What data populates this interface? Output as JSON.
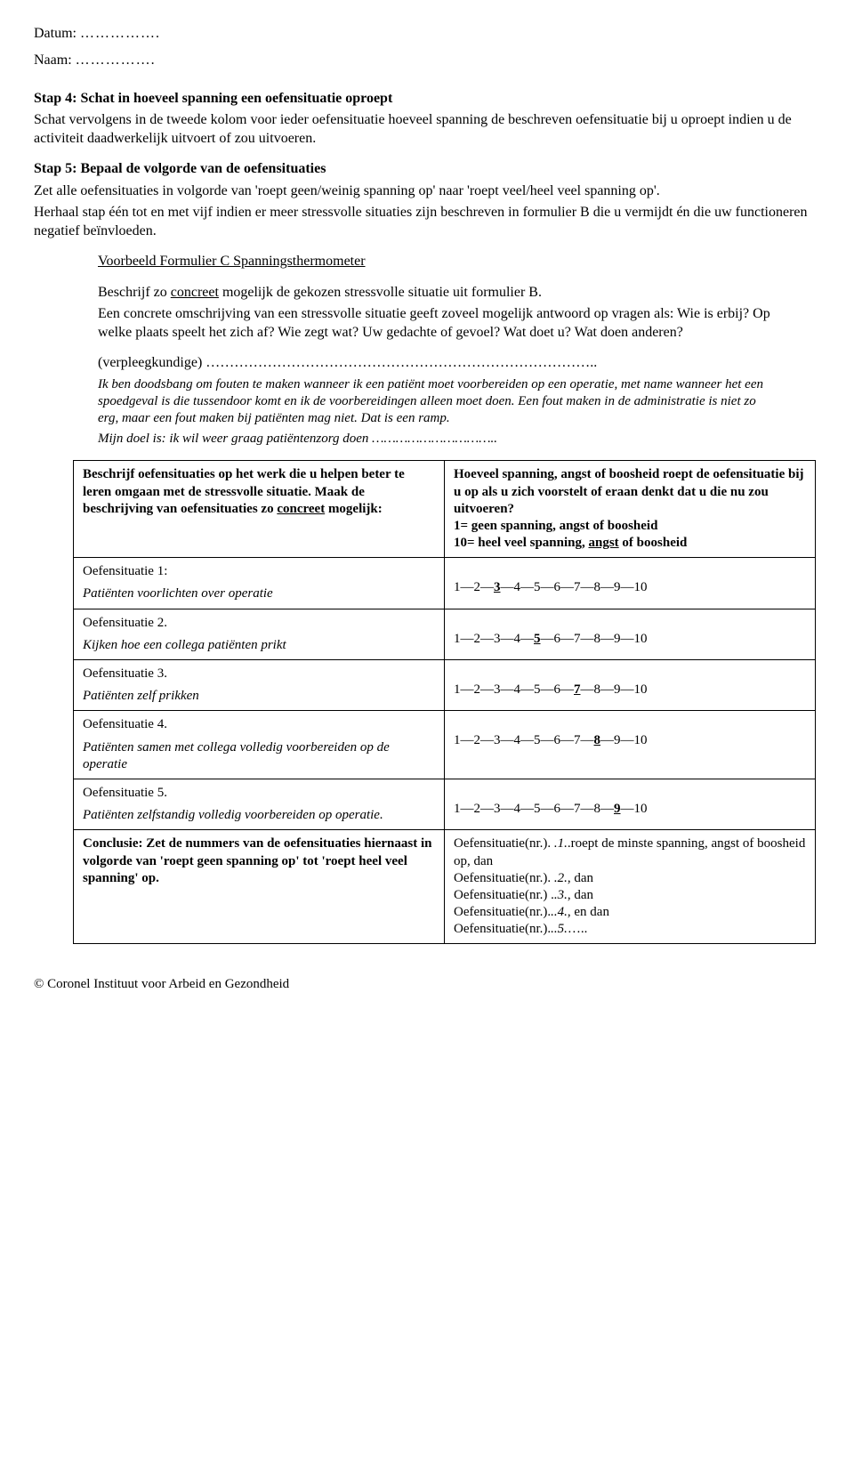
{
  "header": {
    "datum_label": "Datum:",
    "naam_label": "Naam:",
    "dots": "……………."
  },
  "step4": {
    "title": "Stap 4: Schat in hoeveel spanning een oefensituatie oproept",
    "body": "Schat vervolgens in de tweede kolom voor ieder oefensituatie hoeveel spanning de beschreven oefensituatie bij u oproept indien u de activiteit daadwerkelijk uitvoert of zou uitvoeren."
  },
  "step5": {
    "title": "Stap 5: Bepaal de volgorde van de oefensituaties",
    "body1": "Zet alle oefensituaties in volgorde van 'roept geen/weinig spanning op' naar 'roept veel/heel veel spanning op'.",
    "body2": "Herhaal stap één tot en met vijf indien er meer stressvolle situaties zijn beschreven in formulier B die u vermijdt én die uw functioneren negatief beïnvloeden."
  },
  "example": {
    "heading": "Voorbeeld Formulier C Spanningsthermometer",
    "desc_pre": "Beschrijf zo ",
    "desc_u": "concreet",
    "desc_post": " mogelijk de gekozen stressvolle situatie uit formulier B.",
    "desc2": "Een concrete omschrijving van een stressvolle situatie geeft zoveel mogelijk antwoord op vragen als: Wie is erbij? Op welke plaats speelt het zich af? Wie zegt wat? Uw gedachte of gevoel? Wat doet u? Wat doen anderen?",
    "role_label": "(verpleegkundige) ………………………………………………………………………..",
    "italic1": "Ik ben doodsbang om fouten te maken wanneer ik een patiënt moet voorbereiden op een operatie, met name wanneer het een spoedgeval is die tussendoor komt en ik de voorbereidingen alleen moet doen. Een fout maken in de administratie is niet zo erg, maar een fout maken bij patiënten mag niet. Dat is een ramp.",
    "italic2_pre": "Mijn doel is:  ik wil weer graag patiëntenzorg doen ",
    "italic2_dots": "………………………….."
  },
  "table": {
    "left_header_pre": "Beschrijf oefensituaties op het werk die u helpen beter te leren omgaan met de stressvolle situatie. Maak de beschrijving van oefensituaties zo ",
    "left_header_u": "concreet",
    "left_header_post": " mogelijk:",
    "right_header_l1": "Hoeveel spanning, angst of boosheid roept de oefensituatie bij u op als u zich voorstelt of eraan denkt dat u die nu zou uitvoeren?",
    "right_header_l2": "1= geen spanning, angst of boosheid",
    "right_header_l3_pre": "10= heel veel spanning, ",
    "right_header_l3_u": "angst",
    "right_header_l3_post": " of boosheid",
    "rows": [
      {
        "label": "Oefensituatie 1:",
        "answer": "Patiënten voorlichten over operatie",
        "selected": 3
      },
      {
        "label": "Oefensituatie 2.",
        "answer": "Kijken hoe een collega patiënten prikt",
        "selected": 5
      },
      {
        "label": "Oefensituatie 3.",
        "answer": "Patiënten zelf prikken",
        "selected": 7
      },
      {
        "label": "Oefensituatie 4.",
        "answer": "Patiënten samen met collega volledig voorbereiden op de operatie",
        "selected": 8
      },
      {
        "label": "Oefensituatie 5.",
        "answer": "Patiënten zelfstandig volledig voorbereiden op operatie.",
        "selected": 9
      }
    ],
    "conclusion_left": "Conclusie: Zet de nummers van de oefensituaties hiernaast in volgorde van 'roept geen spanning op' tot 'roept heel veel spanning' op.",
    "concl_r_line1_a": "Oefensituatie(nr.). ",
    "concl_r_line1_i": ".1.",
    "concl_r_line1_b": ".roept de minste spanning, angst of boosheid op, dan",
    "concl_r_line2_a": "Oefensituatie(nr.). ",
    "concl_r_line2_i": ".2.",
    "concl_r_line2_b": ", dan",
    "concl_r_line3_a": "Oefensituatie(nr.) .",
    "concl_r_line3_i": ".3.",
    "concl_r_line3_b": ", dan",
    "concl_r_line4_a": "Oefensituatie(nr.).",
    "concl_r_line4_i": "..4.",
    "concl_r_line4_b": ", en dan",
    "concl_r_line5_a": "Oefensituatie(nr.).",
    "concl_r_line5_i": "..5.",
    "concl_r_line5_b": "….."
  },
  "footer": "© Coronel Instituut voor Arbeid en Gezondheid"
}
